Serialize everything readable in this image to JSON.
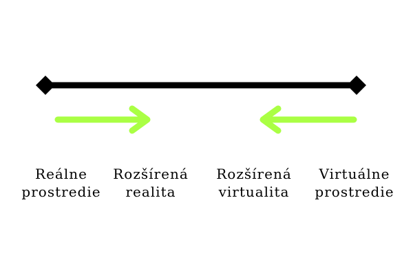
{
  "colors": {
    "line": "#000000",
    "arrow": "#aaff44"
  },
  "labels": [
    {
      "line1": "Reálne",
      "line2": "prostredie"
    },
    {
      "line1": "Rozšírená",
      "line2": "realita"
    },
    {
      "line1": "Rozšírená",
      "line2": "virtualita"
    },
    {
      "line1": "Virtuálne",
      "line2": "prostredie"
    }
  ]
}
